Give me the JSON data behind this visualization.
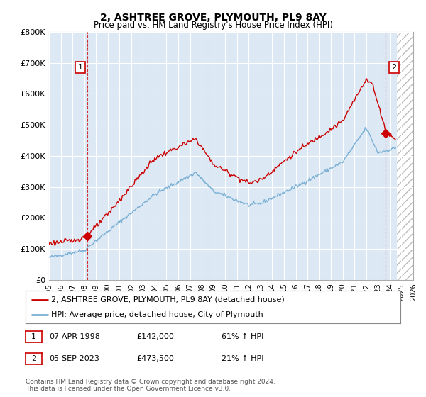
{
  "title": "2, ASHTREE GROVE, PLYMOUTH, PL9 8AY",
  "subtitle": "Price paid vs. HM Land Registry's House Price Index (HPI)",
  "title_fontsize": 10,
  "subtitle_fontsize": 8.5,
  "xlim": [
    1995.0,
    2026.0
  ],
  "ylim": [
    0,
    800000
  ],
  "yticks": [
    0,
    100000,
    200000,
    300000,
    400000,
    500000,
    600000,
    700000,
    800000
  ],
  "ytick_labels": [
    "£0",
    "£100K",
    "£200K",
    "£300K",
    "£400K",
    "£500K",
    "£600K",
    "£700K",
    "£800K"
  ],
  "xticks": [
    1995,
    1996,
    1997,
    1998,
    1999,
    2000,
    2001,
    2002,
    2003,
    2004,
    2005,
    2006,
    2007,
    2008,
    2009,
    2010,
    2011,
    2012,
    2013,
    2014,
    2015,
    2016,
    2017,
    2018,
    2019,
    2020,
    2021,
    2022,
    2023,
    2024,
    2025,
    2026
  ],
  "background_color": "#dce9f5",
  "plot_bg_color": "#dce9f5",
  "fig_bg_color": "#ffffff",
  "red_line_color": "#cc0000",
  "blue_line_color": "#7ab0d4",
  "hatch_start": 2024.6,
  "sale1_x": 1998.25,
  "sale1_y": 142000,
  "sale2_x": 2023.67,
  "sale2_y": 473500,
  "sale1_label": "1",
  "sale2_label": "2",
  "legend_line1": "2, ASHTREE GROVE, PLYMOUTH, PL9 8AY (detached house)",
  "legend_line2": "HPI: Average price, detached house, City of Plymouth",
  "annotation1_date": "07-APR-1998",
  "annotation1_price": "£142,000",
  "annotation1_hpi": "61% ↑ HPI",
  "annotation2_date": "05-SEP-2023",
  "annotation2_price": "£473,500",
  "annotation2_hpi": "21% ↑ HPI",
  "footer": "Contains HM Land Registry data © Crown copyright and database right 2024.\nThis data is licensed under the Open Government Licence v3.0."
}
